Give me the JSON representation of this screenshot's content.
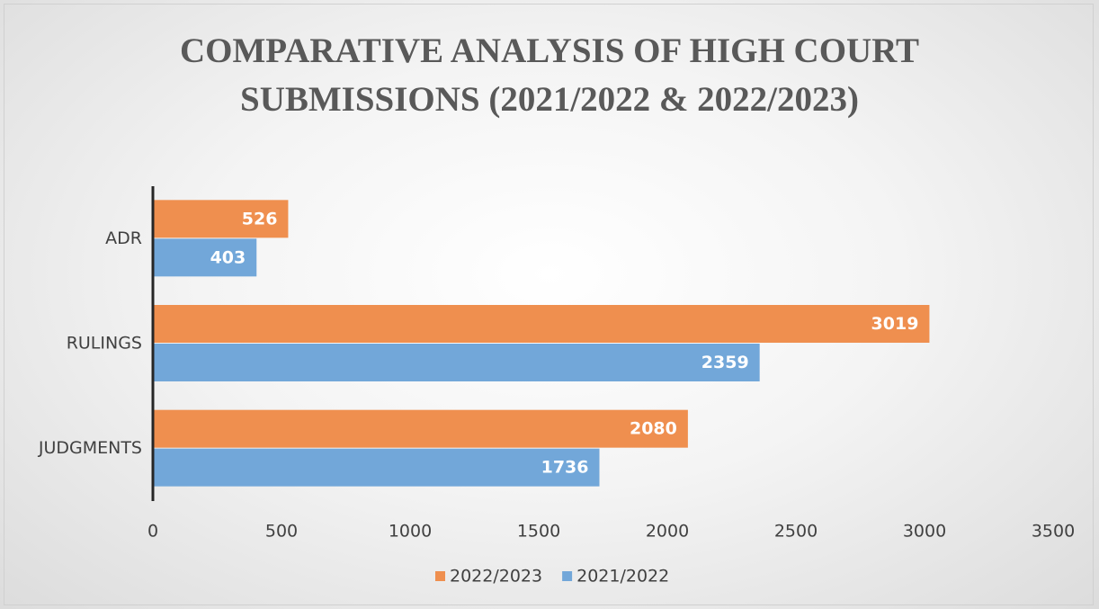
{
  "chart_data": {
    "type": "hbar",
    "title": "COMPARATIVE ANALYSIS OF HIGH COURT SUBMISSIONS (2021/2022 & 2022/2023)",
    "categories": [
      "ADR",
      "RULINGS",
      "JUDGMENTS"
    ],
    "series": [
      {
        "name": "2022/2023",
        "color": "#ef8f4f",
        "values": [
          526,
          3019,
          2080
        ]
      },
      {
        "name": "2021/2022",
        "color": "#72a7d9",
        "values": [
          403,
          2359,
          1736
        ]
      }
    ],
    "xlim": [
      0,
      3500
    ],
    "xticks": [
      0,
      500,
      1000,
      1500,
      2000,
      2500,
      3000,
      3500
    ],
    "grid": false,
    "legend": "bottom"
  }
}
